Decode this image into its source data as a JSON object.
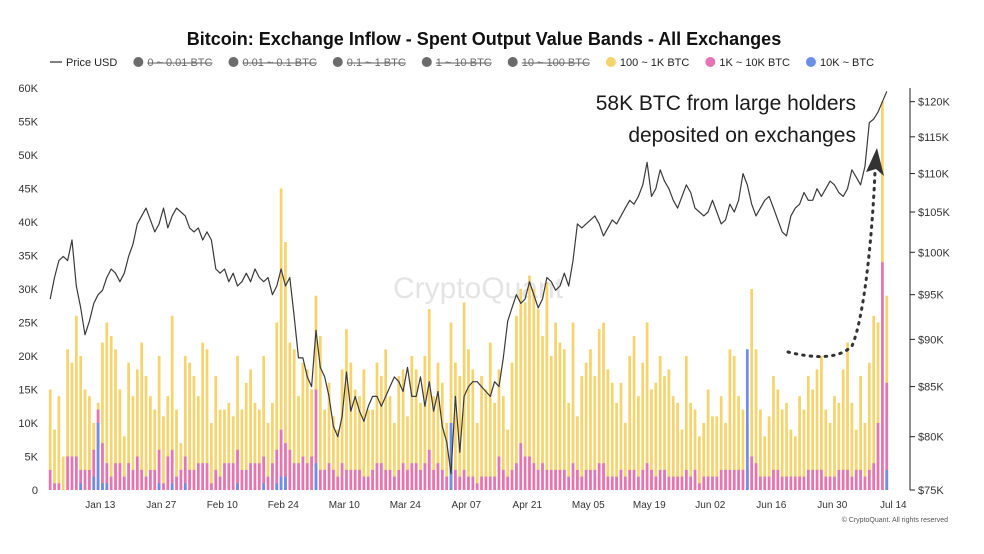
{
  "chart_data": {
    "type": "bar",
    "title": "Bitcoin: Exchange Inflow - Spent Output Value Bands - All Exchanges",
    "legend": [
      {
        "name": "Price USD",
        "color": "#555555",
        "kind": "line",
        "active": true
      },
      {
        "name": "0 ~ 0.01 BTC",
        "color": "#6b6b6b",
        "kind": "dot",
        "active": false
      },
      {
        "name": "0.01 ~ 0.1 BTC",
        "color": "#6b6b6b",
        "kind": "dot",
        "active": false
      },
      {
        "name": "0.1 ~ 1 BTC",
        "color": "#6b6b6b",
        "kind": "dot",
        "active": false
      },
      {
        "name": "1 ~ 10 BTC",
        "color": "#6b6b6b",
        "kind": "dot",
        "active": false
      },
      {
        "name": "10 ~ 100 BTC",
        "color": "#6b6b6b",
        "kind": "dot",
        "active": false
      },
      {
        "name": "100 ~ 1K BTC",
        "color": "#f6d36b",
        "kind": "dot",
        "active": true
      },
      {
        "name": "1K ~ 10K BTC",
        "color": "#e873b4",
        "kind": "dot",
        "active": true
      },
      {
        "name": "10K ~ BTC",
        "color": "#6b8fe8",
        "kind": "dot",
        "active": true
      }
    ],
    "legend_placement": "top",
    "y_left_ticks": [
      "0",
      "5K",
      "10K",
      "15K",
      "20K",
      "25K",
      "30K",
      "35K",
      "40K",
      "45K",
      "50K",
      "55K",
      "60K"
    ],
    "y_left_range": [
      0,
      60000
    ],
    "y_right_ticks": [
      "$75K",
      "$80K",
      "$85K",
      "$90K",
      "$95K",
      "$100K",
      "$105K",
      "$110K",
      "$115K",
      "$120K"
    ],
    "y_right_range": [
      75000,
      122000
    ],
    "y_right_scale": "log",
    "x_ticks": [
      "Jan 13",
      "Jan 27",
      "Feb 10",
      "Feb 24",
      "Mar 10",
      "Mar 24",
      "Apr 07",
      "Apr 21",
      "May 05",
      "May 19",
      "Jun 02",
      "Jun 16",
      "Jun 30",
      "Jul 14"
    ],
    "x_tick_days": [
      12,
      26,
      40,
      54,
      68,
      82,
      96,
      110,
      124,
      138,
      152,
      166,
      180,
      194
    ],
    "x_range_days": [
      0,
      196
    ],
    "annotation": {
      "lines": [
        "58K BTC from large holders",
        "deposited on exchanges"
      ]
    },
    "watermark": "CryptoQuant",
    "copyright": "© CryptoQuant. All rights reserved",
    "grid": false,
    "series_bar_100_1k": [
      15,
      9,
      14,
      5,
      21,
      19,
      26,
      20,
      15,
      14,
      10,
      13,
      22,
      25,
      23,
      21,
      15,
      8,
      19,
      14,
      18,
      22,
      17,
      14,
      12,
      20,
      11,
      14,
      26,
      12,
      7,
      20,
      19,
      17,
      14,
      22,
      21,
      10,
      17,
      12,
      12,
      13,
      11,
      20,
      12,
      16,
      18,
      13,
      12,
      20,
      10,
      13,
      25,
      45,
      37,
      22,
      21,
      14,
      19,
      18,
      15,
      29,
      23,
      12,
      16,
      11,
      9,
      18,
      24,
      19,
      15,
      14,
      18,
      12,
      12,
      19,
      17,
      21,
      14,
      10,
      17,
      18,
      11,
      20,
      18,
      13,
      20,
      27,
      14,
      19,
      16,
      10,
      25,
      19,
      17,
      28,
      21,
      18,
      10,
      17,
      15,
      22,
      13,
      18,
      14,
      9,
      19,
      26,
      30,
      28,
      32,
      30,
      27,
      23,
      31,
      20,
      25,
      22,
      21,
      13,
      25,
      11,
      17,
      19,
      21,
      17,
      24,
      25,
      18,
      16,
      13,
      16,
      10,
      20,
      23,
      14,
      19,
      25,
      15,
      16,
      20,
      17,
      18,
      14,
      13,
      9,
      20,
      13,
      12,
      8,
      10,
      15,
      11,
      11,
      14,
      10,
      21,
      20,
      14,
      12,
      10,
      30,
      21,
      12,
      8,
      11,
      17,
      15,
      12,
      13,
      9,
      8,
      14,
      12,
      17,
      15,
      18,
      20,
      12,
      10,
      14,
      13,
      18,
      22,
      13,
      9,
      17,
      10,
      19,
      26,
      25,
      58,
      29
    ],
    "series_bar_1k_10k": [
      3,
      1,
      1,
      0,
      5,
      5,
      5,
      3,
      3,
      3,
      6,
      12,
      7,
      4,
      2,
      4,
      4,
      2,
      4,
      3,
      5,
      3,
      2,
      3,
      3,
      6,
      1,
      5,
      6,
      2,
      3,
      5,
      3,
      3,
      4,
      4,
      4,
      1,
      3,
      2,
      4,
      4,
      4,
      6,
      3,
      3,
      4,
      4,
      4,
      5,
      2,
      4,
      6,
      9,
      7,
      6,
      4,
      4,
      5,
      4,
      5,
      15,
      3,
      3,
      4,
      3,
      2,
      4,
      3,
      3,
      3,
      3,
      2,
      2,
      3,
      4,
      4,
      3,
      3,
      2,
      3,
      4,
      3,
      4,
      4,
      3,
      4,
      6,
      3,
      4,
      3,
      2,
      5,
      3,
      2,
      3,
      2,
      2,
      1,
      2,
      2,
      2,
      2,
      5,
      3,
      2,
      3,
      4,
      7,
      5,
      5,
      4,
      3,
      4,
      3,
      3,
      3,
      3,
      3,
      2,
      4,
      3,
      2,
      3,
      3,
      3,
      4,
      4,
      2,
      2,
      2,
      3,
      2,
      3,
      3,
      2,
      3,
      4,
      3,
      2,
      3,
      3,
      2,
      2,
      2,
      2,
      3,
      2,
      3,
      1,
      2,
      2,
      2,
      2,
      3,
      3,
      3,
      3,
      3,
      3,
      3,
      5,
      4,
      2,
      2,
      2,
      3,
      3,
      2,
      2,
      2,
      2,
      2,
      2,
      3,
      3,
      3,
      3,
      2,
      2,
      2,
      3,
      3,
      3,
      2,
      3,
      3,
      2,
      3,
      4,
      10,
      34,
      16
    ],
    "series_bar_10k_plus": [
      0,
      0,
      0,
      0,
      0,
      0,
      0,
      1,
      0,
      0,
      2,
      10,
      1,
      1,
      0,
      0,
      0,
      0,
      0,
      0,
      0,
      0,
      0,
      0,
      0,
      1,
      0,
      0,
      1,
      0,
      0,
      1,
      0,
      0,
      0,
      0,
      0,
      0,
      0,
      0,
      0,
      0,
      0,
      1,
      0,
      0,
      0,
      0,
      0,
      1,
      0,
      0,
      1,
      2,
      2,
      0,
      0,
      0,
      0,
      0,
      0,
      4,
      0,
      0,
      0,
      0,
      0,
      0,
      0,
      0,
      0,
      0,
      0,
      0,
      0,
      0,
      0,
      0,
      0,
      0,
      0,
      0,
      0,
      0,
      0,
      0,
      0,
      0,
      0,
      0,
      0,
      0,
      10,
      0,
      0,
      0,
      0,
      0,
      0,
      0,
      0,
      0,
      0,
      0,
      0,
      0,
      0,
      0,
      0,
      0,
      0,
      0,
      0,
      0,
      0,
      0,
      0,
      0,
      0,
      0,
      0,
      0,
      0,
      0,
      0,
      0,
      0,
      0,
      0,
      0,
      0,
      0,
      0,
      0,
      0,
      0,
      0,
      0,
      0,
      0,
      0,
      0,
      0,
      0,
      0,
      0,
      0,
      0,
      0,
      0,
      0,
      0,
      0,
      0,
      0,
      0,
      0,
      0,
      0,
      0,
      21,
      0,
      0,
      0,
      0,
      0,
      0,
      0,
      0,
      0,
      0,
      0,
      0,
      0,
      0,
      0,
      0,
      0,
      0,
      0,
      0,
      0,
      0,
      0,
      0,
      0,
      0,
      0,
      0,
      0,
      0,
      0,
      3
    ],
    "price_usd": [
      94500,
      97000,
      99000,
      99500,
      99000,
      101500,
      96000,
      93500,
      90500,
      92000,
      94000,
      95000,
      95500,
      97000,
      98000,
      97500,
      96500,
      97500,
      99500,
      101000,
      103500,
      104500,
      105500,
      104000,
      102500,
      103500,
      105500,
      103000,
      104500,
      105500,
      105000,
      104500,
      103000,
      102500,
      103000,
      101500,
      102500,
      101500,
      98000,
      97500,
      98000,
      96500,
      97500,
      96000,
      96500,
      97500,
      96500,
      98000,
      97000,
      96500,
      97000,
      95000,
      96000,
      98000,
      96000,
      97000,
      92500,
      88000,
      88000,
      86000,
      85000,
      91000,
      87000,
      86000,
      84000,
      81000,
      80000,
      82000,
      86500,
      82500,
      84000,
      82500,
      81500,
      83000,
      84000,
      84000,
      83000,
      84000,
      85000,
      86000,
      85500,
      84500,
      87000,
      84000,
      84000,
      86000,
      83000,
      85500,
      82500,
      84500,
      81000,
      79500,
      76500,
      84000,
      78500,
      84000,
      85000,
      85500,
      85500,
      85000,
      84500,
      84000,
      85500,
      85000,
      88000,
      92000,
      93500,
      95000,
      94000,
      94500,
      96500,
      95000,
      93500,
      94500,
      97000,
      96500,
      95500,
      96000,
      97500,
      96000,
      99000,
      103500,
      103000,
      103500,
      104000,
      104500,
      103500,
      102000,
      103000,
      104000,
      103500,
      104500,
      105500,
      106500,
      106000,
      107000,
      108500,
      111500,
      107000,
      108000,
      110500,
      109000,
      108000,
      106500,
      105500,
      107000,
      108500,
      107500,
      105500,
      105000,
      104500,
      105000,
      106500,
      105000,
      103500,
      104000,
      106000,
      105000,
      106500,
      110000,
      108500,
      106000,
      104500,
      105500,
      106500,
      107000,
      105500,
      104000,
      102500,
      102000,
      104500,
      105500,
      106000,
      107500,
      106500,
      106500,
      108000,
      107000,
      108000,
      109000,
      108500,
      107500,
      107000,
      108000,
      110500,
      109500,
      108500,
      111000,
      117000,
      117500,
      118500,
      120000,
      121500
    ]
  }
}
